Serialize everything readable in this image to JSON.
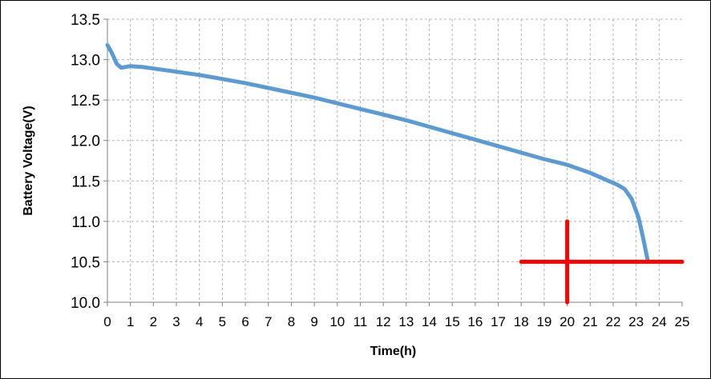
{
  "chart_data": {
    "type": "line",
    "title": "",
    "xlabel": "Time(h)",
    "ylabel": "Battery Voltage(V)",
    "xlim": [
      0,
      25
    ],
    "ylim": [
      10.0,
      13.5
    ],
    "grid": true,
    "x_ticks": [
      "0",
      "1",
      "2",
      "3",
      "4",
      "5",
      "6",
      "7",
      "8",
      "9",
      "10",
      "11",
      "12",
      "13",
      "14",
      "15",
      "16",
      "17",
      "18",
      "19",
      "20",
      "21",
      "22",
      "23",
      "24",
      "25"
    ],
    "y_ticks": [
      "10.0",
      "10.5",
      "11.0",
      "11.5",
      "12.0",
      "12.5",
      "13.0",
      "13.5"
    ],
    "series": [
      {
        "color": "#5B9BD5",
        "points": [
          [
            0,
            13.18
          ],
          [
            0.2,
            13.08
          ],
          [
            0.4,
            12.95
          ],
          [
            0.6,
            12.9
          ],
          [
            0.8,
            12.91
          ],
          [
            1,
            12.92
          ],
          [
            1.5,
            12.91
          ],
          [
            2,
            12.89
          ],
          [
            3,
            12.85
          ],
          [
            4,
            12.81
          ],
          [
            5,
            12.76
          ],
          [
            6,
            12.71
          ],
          [
            7,
            12.65
          ],
          [
            8,
            12.59
          ],
          [
            9,
            12.53
          ],
          [
            10,
            12.46
          ],
          [
            11,
            12.39
          ],
          [
            12,
            12.32
          ],
          [
            13,
            12.25
          ],
          [
            14,
            12.17
          ],
          [
            15,
            12.09
          ],
          [
            16,
            12.01
          ],
          [
            17,
            11.93
          ],
          [
            18,
            11.85
          ],
          [
            19,
            11.77
          ],
          [
            20,
            11.7
          ],
          [
            21,
            11.6
          ],
          [
            21.8,
            11.5
          ],
          [
            22.2,
            11.45
          ],
          [
            22.5,
            11.4
          ],
          [
            22.8,
            11.28
          ],
          [
            23.1,
            11.05
          ],
          [
            23.3,
            10.8
          ],
          [
            23.5,
            10.52
          ]
        ]
      }
    ],
    "markers": [
      {
        "color": "#FF0000",
        "x_range": [
          18,
          25
        ],
        "y": 10.5
      },
      {
        "color": "#FF0000",
        "x": 20,
        "y_range": [
          10.0,
          11.0
        ]
      }
    ]
  }
}
